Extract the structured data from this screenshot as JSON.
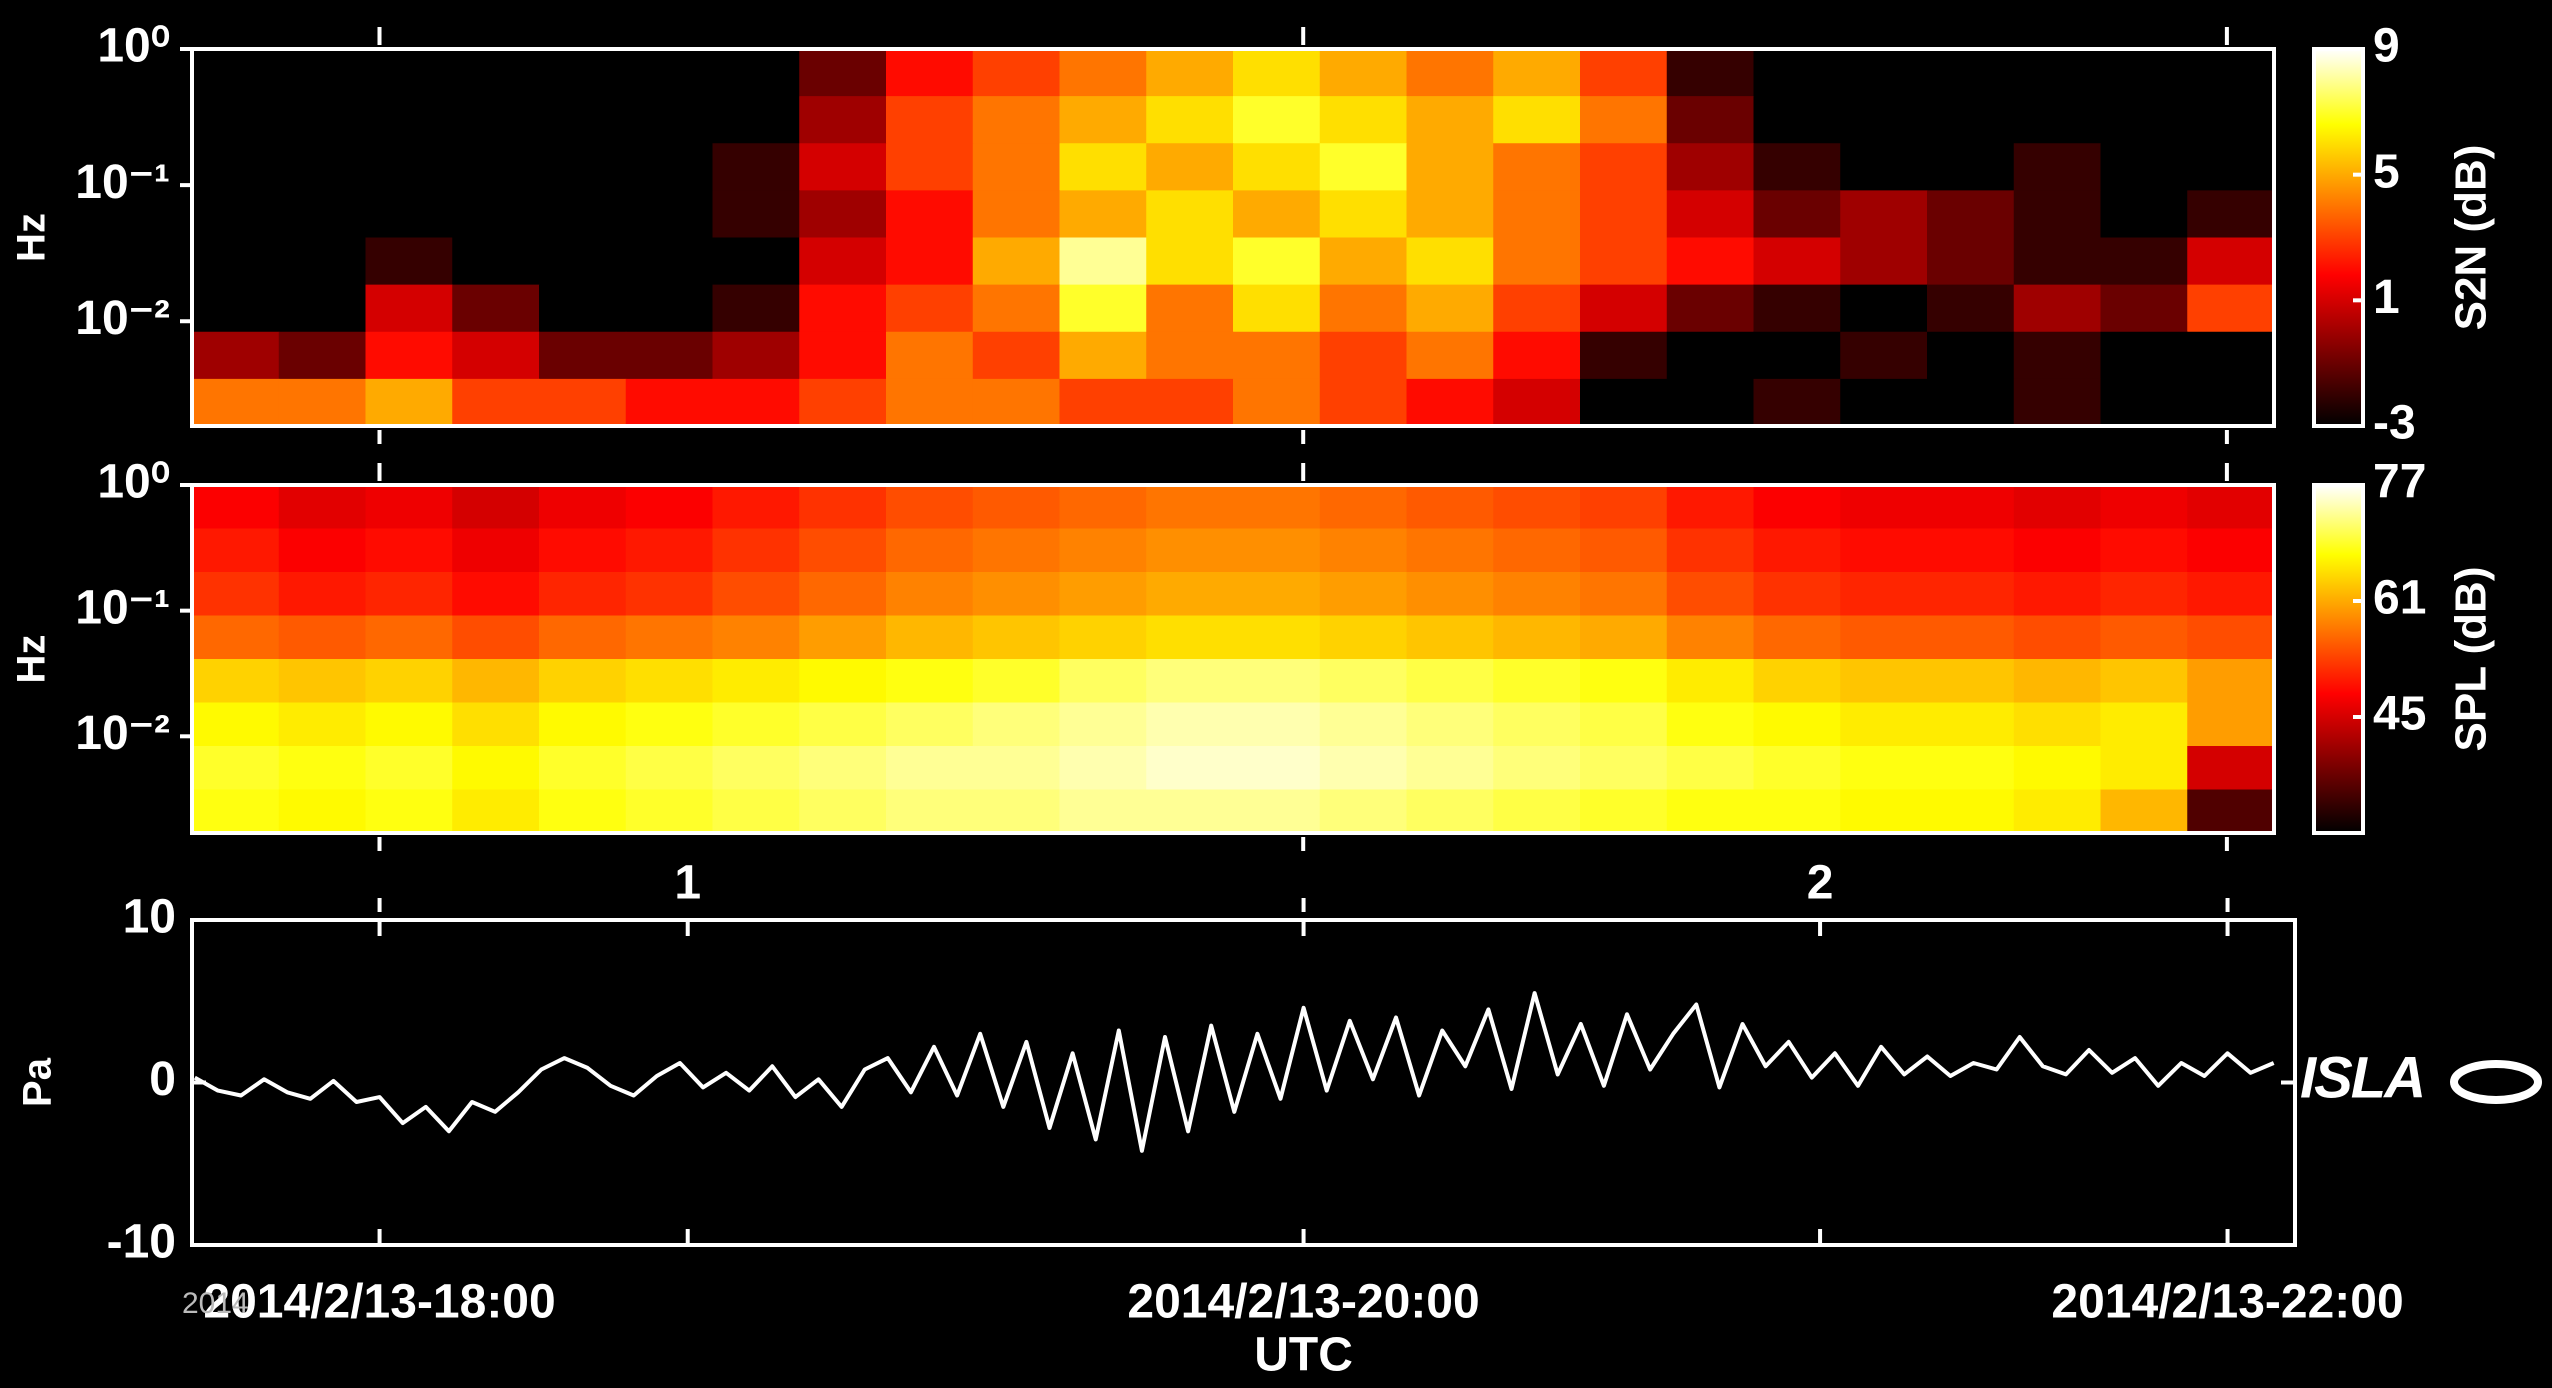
{
  "chart_data": [
    {
      "type": "heatmap",
      "ylabel": "Hz",
      "colorbar_label": "S2N (dB)",
      "clim": [
        -3,
        9
      ],
      "cticks": [
        -3,
        1,
        5,
        9
      ],
      "xlim": [
        17.594,
        22.102
      ],
      "xticks": [
        18,
        20,
        22
      ],
      "ylim": [
        0.0017,
        1
      ],
      "yscale": "log",
      "yticks": [
        {
          "value": 1,
          "label": "10⁰"
        },
        {
          "value": 0.1,
          "label": "10⁻¹"
        },
        {
          "value": 0.01,
          "label": "10⁻²"
        }
      ],
      "z": [
        [
          -3,
          -3,
          -3,
          -3,
          -3,
          -3,
          -3,
          -1,
          2,
          3,
          4,
          5,
          6,
          5,
          4,
          5,
          3,
          -2,
          -3,
          -3,
          -3,
          -3,
          -3,
          -3
        ],
        [
          -3,
          -3,
          -3,
          -3,
          -3,
          -3,
          -3,
          0,
          3,
          4,
          5,
          6,
          7,
          6,
          5,
          6,
          4,
          -1,
          -3,
          -3,
          -3,
          -3,
          -3,
          -3
        ],
        [
          -3,
          -3,
          -3,
          -3,
          -3,
          -3,
          -2,
          1,
          3,
          4,
          6,
          5,
          6,
          7,
          5,
          4,
          3,
          0,
          -2,
          -3,
          -3,
          -2,
          -3,
          -3
        ],
        [
          -3,
          -3,
          -3,
          -3,
          -3,
          -3,
          -2,
          0,
          2,
          4,
          5,
          6,
          5,
          6,
          5,
          4,
          3,
          1,
          -1,
          0,
          -1,
          -2,
          -3,
          -2
        ],
        [
          -3,
          -3,
          -2,
          -3,
          -3,
          -3,
          -3,
          1,
          2,
          5,
          8,
          6,
          7,
          5,
          6,
          4,
          3,
          2,
          1,
          0,
          -1,
          -2,
          -2,
          1
        ],
        [
          -3,
          -3,
          1,
          -1,
          -3,
          -3,
          -2,
          2,
          3,
          4,
          7,
          4,
          6,
          4,
          5,
          3,
          1,
          -1,
          -2,
          -3,
          -2,
          0,
          -1,
          3
        ],
        [
          0,
          -1,
          2,
          1,
          -1,
          -1,
          0,
          2,
          4,
          3,
          5,
          4,
          4,
          3,
          4,
          2,
          -2,
          -3,
          -3,
          -2,
          -3,
          -2,
          -3,
          -3
        ],
        [
          4,
          4,
          5,
          3,
          3,
          2,
          2,
          3,
          4,
          4,
          3,
          3,
          4,
          3,
          2,
          1,
          -3,
          -3,
          -2,
          -3,
          -3,
          -2,
          -3,
          -3
        ]
      ]
    },
    {
      "type": "heatmap",
      "ylabel": "Hz",
      "colorbar_label": "SPL (dB)",
      "clim": [
        29,
        77
      ],
      "cticks": [
        45,
        61,
        77
      ],
      "xlim": [
        17.594,
        22.102
      ],
      "xticks": [
        18,
        20,
        22
      ],
      "ylim": [
        0.0017,
        1
      ],
      "yscale": "log",
      "yticks": [
        {
          "value": 1,
          "label": "10⁰"
        },
        {
          "value": 0.1,
          "label": "10⁻¹"
        },
        {
          "value": 0.01,
          "label": "10⁻²"
        }
      ],
      "z": [
        [
          48,
          46,
          47,
          45,
          47,
          48,
          50,
          52,
          54,
          55,
          56,
          57,
          57,
          56,
          55,
          54,
          53,
          50,
          48,
          47,
          47,
          46,
          47,
          46
        ],
        [
          50,
          48,
          49,
          47,
          49,
          50,
          52,
          54,
          56,
          57,
          58,
          59,
          59,
          58,
          57,
          56,
          55,
          52,
          50,
          49,
          49,
          48,
          49,
          48
        ],
        [
          52,
          50,
          51,
          49,
          51,
          52,
          54,
          56,
          58,
          59,
          60,
          61,
          61,
          60,
          59,
          58,
          57,
          54,
          52,
          51,
          51,
          50,
          51,
          50
        ],
        [
          56,
          55,
          56,
          54,
          56,
          57,
          58,
          60,
          62,
          63,
          64,
          65,
          65,
          64,
          63,
          62,
          61,
          58,
          56,
          55,
          55,
          54,
          55,
          54
        ],
        [
          64,
          63,
          64,
          62,
          64,
          65,
          66,
          67,
          68,
          69,
          71,
          72,
          72,
          71,
          70,
          69,
          68,
          66,
          64,
          63,
          63,
          62,
          63,
          60
        ],
        [
          67,
          66,
          67,
          65,
          67,
          68,
          69,
          70,
          71,
          72,
          73,
          74,
          74,
          73,
          72,
          71,
          70,
          68,
          67,
          66,
          66,
          65,
          66,
          60
        ],
        [
          69,
          68,
          69,
          67,
          69,
          70,
          71,
          72,
          73,
          73,
          74,
          75,
          75,
          74,
          73,
          72,
          71,
          70,
          69,
          68,
          68,
          67,
          66,
          45
        ],
        [
          68,
          67,
          68,
          66,
          68,
          69,
          70,
          71,
          72,
          72,
          73,
          73,
          73,
          72,
          71,
          70,
          69,
          68,
          68,
          67,
          67,
          66,
          62,
          35
        ]
      ]
    },
    {
      "type": "line",
      "ylabel": "Pa",
      "xlabel": "UTC",
      "xlim": [
        17.594,
        22.146
      ],
      "ylim": [
        -10,
        10
      ],
      "yticks": [
        -10,
        0,
        10
      ],
      "xticks": [
        {
          "value": 18,
          "label": "2014/2/13-18:00"
        },
        {
          "value": 20,
          "label": "2014/2/13-20:00"
        },
        {
          "value": 22,
          "label": "2014/2/13-22:00"
        }
      ],
      "events": [
        {
          "value": 18.667,
          "label": "1"
        },
        {
          "value": 21.118,
          "label": "2"
        }
      ],
      "color": "#ffffff",
      "x": [
        17.6,
        17.65,
        17.7,
        17.75,
        17.8,
        17.85,
        17.9,
        17.95,
        18.0,
        18.05,
        18.1,
        18.15,
        18.2,
        18.25,
        18.3,
        18.35,
        18.4,
        18.45,
        18.5,
        18.55,
        18.6,
        18.65,
        18.7,
        18.75,
        18.8,
        18.85,
        18.9,
        18.95,
        19.0,
        19.05,
        19.1,
        19.15,
        19.2,
        19.25,
        19.3,
        19.35,
        19.4,
        19.45,
        19.5,
        19.55,
        19.6,
        19.65,
        19.7,
        19.75,
        19.8,
        19.85,
        19.9,
        19.95,
        20.0,
        20.05,
        20.1,
        20.15,
        20.2,
        20.25,
        20.3,
        20.35,
        20.4,
        20.45,
        20.5,
        20.55,
        20.6,
        20.65,
        20.7,
        20.75,
        20.8,
        20.85,
        20.9,
        20.95,
        21.0,
        21.05,
        21.1,
        21.15,
        21.2,
        21.25,
        21.3,
        21.35,
        21.4,
        21.45,
        21.5,
        21.55,
        21.6,
        21.65,
        21.7,
        21.75,
        21.8,
        21.85,
        21.9,
        21.95,
        22.0,
        22.05,
        22.1
      ],
      "values": [
        0.3,
        -0.5,
        -0.8,
        0.2,
        -0.6,
        -1.0,
        0.1,
        -1.2,
        -0.9,
        -2.5,
        -1.5,
        -3.0,
        -1.2,
        -1.8,
        -0.6,
        0.8,
        1.5,
        0.9,
        -0.2,
        -0.8,
        0.4,
        1.2,
        -0.3,
        0.6,
        -0.5,
        1.0,
        -0.9,
        0.2,
        -1.5,
        0.8,
        1.5,
        -0.6,
        2.2,
        -0.8,
        3.0,
        -1.5,
        2.5,
        -2.8,
        1.8,
        -3.5,
        3.2,
        -4.2,
        2.8,
        -3.0,
        3.5,
        -1.8,
        3.0,
        -1.0,
        4.6,
        -0.5,
        3.8,
        0.2,
        4.0,
        -0.8,
        3.2,
        1.0,
        4.5,
        -0.4,
        5.5,
        0.5,
        3.6,
        -0.2,
        4.2,
        0.8,
        3.0,
        4.8,
        -0.3,
        3.6,
        1.0,
        2.5,
        0.3,
        1.8,
        -0.2,
        2.2,
        0.5,
        1.6,
        0.4,
        1.2,
        0.8,
        2.8,
        1.0,
        0.5,
        2.0,
        0.6,
        1.5,
        -0.2,
        1.2,
        0.4,
        1.8,
        0.6,
        1.2
      ]
    }
  ],
  "logo": "ISLA",
  "watermark": "2014"
}
